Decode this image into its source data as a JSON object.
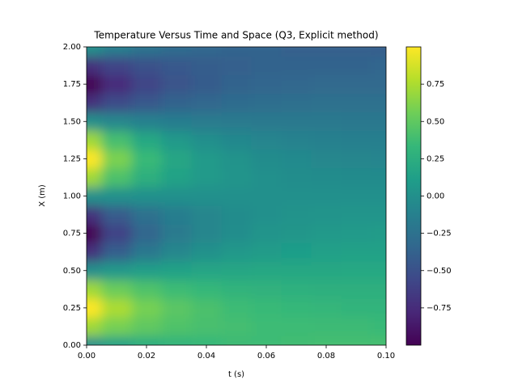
{
  "chart_data": {
    "type": "heatmap",
    "title": "Temperature Versus Time and Space (Q3, Explicit method)",
    "xlabel": "t (s)",
    "ylabel": "X (m)",
    "colormap": "viridis",
    "x": [
      0,
      0.01,
      0.02,
      0.03,
      0.04,
      0.05,
      0.06,
      0.07,
      0.08,
      0.09,
      0.1
    ],
    "y": [
      0,
      0.125,
      0.25,
      0.375,
      0.5,
      0.625,
      0.75,
      0.875,
      1,
      1.125,
      1.25,
      1.375,
      1.5,
      1.625,
      1.75,
      1.875,
      2
    ],
    "z": [
      [
        0,
        0.14,
        0.24,
        0.3,
        0.33,
        0.36,
        0.37,
        0.38,
        0.39,
        0.39,
        0.4
      ],
      [
        0.71,
        0.58,
        0.5,
        0.44,
        0.41,
        0.39,
        0.37,
        0.37,
        0.36,
        0.36,
        0.35
      ],
      [
        1.0,
        0.75,
        0.58,
        0.48,
        0.42,
        0.37,
        0.35,
        0.33,
        0.32,
        0.31,
        0.31
      ],
      [
        0.71,
        0.54,
        0.44,
        0.37,
        0.33,
        0.3,
        0.28,
        0.27,
        0.26,
        0.26,
        0.26
      ],
      [
        0,
        0.07,
        0.12,
        0.15,
        0.17,
        0.18,
        0.19,
        0.19,
        0.19,
        0.2,
        0.2
      ],
      [
        -0.71,
        -0.4,
        -0.2,
        -0.07,
        0.01,
        0.06,
        0.09,
        0.11,
        0.13,
        0.14,
        0.14
      ],
      [
        -1.0,
        -0.6,
        -0.35,
        -0.18,
        -0.08,
        -0.02,
        0.03,
        0.05,
        0.07,
        0.08,
        0.09
      ],
      [
        -0.71,
        -0.43,
        -0.26,
        -0.15,
        -0.08,
        -0.03,
        0,
        0.02,
        0.03,
        0.04,
        0.04
      ],
      [
        0,
        0,
        0,
        0,
        0,
        0,
        0,
        0,
        0,
        0,
        0
      ],
      [
        0.71,
        0.43,
        0.26,
        0.15,
        0.08,
        0.03,
        0,
        -0.02,
        -0.03,
        -0.04,
        -0.04
      ],
      [
        1.0,
        0.6,
        0.35,
        0.18,
        0.08,
        0.02,
        -0.03,
        -0.05,
        -0.07,
        -0.08,
        -0.09
      ],
      [
        0.71,
        0.4,
        0.2,
        0.07,
        -0.01,
        -0.06,
        -0.09,
        -0.11,
        -0.13,
        -0.14,
        -0.14
      ],
      [
        0,
        -0.07,
        -0.12,
        -0.15,
        -0.17,
        -0.18,
        -0.19,
        -0.19,
        -0.19,
        -0.2,
        -0.2
      ],
      [
        -0.71,
        -0.54,
        -0.44,
        -0.37,
        -0.33,
        -0.3,
        -0.28,
        -0.27,
        -0.26,
        -0.26,
        -0.26
      ],
      [
        -1.0,
        -0.75,
        -0.58,
        -0.48,
        -0.42,
        -0.37,
        -0.35,
        -0.33,
        -0.32,
        -0.31,
        -0.31
      ],
      [
        -0.71,
        -0.58,
        -0.5,
        -0.44,
        -0.41,
        -0.39,
        -0.37,
        -0.37,
        -0.36,
        -0.36,
        -0.35
      ],
      [
        0,
        -0.14,
        -0.24,
        -0.3,
        -0.33,
        -0.36,
        -0.37,
        -0.38,
        -0.39,
        -0.39,
        -0.4
      ]
    ],
    "xlim": [
      0,
      0.1
    ],
    "xticks": [
      {
        "value": 0,
        "label": "0.00"
      },
      {
        "value": 0.02,
        "label": "0.02"
      },
      {
        "value": 0.04,
        "label": "0.04"
      },
      {
        "value": 0.06,
        "label": "0.06"
      },
      {
        "value": 0.08,
        "label": "0.08"
      },
      {
        "value": 0.1,
        "label": "0.10"
      }
    ],
    "ylim": [
      0,
      2
    ],
    "yticks": [
      {
        "value": 0,
        "label": "0.00"
      },
      {
        "value": 0.25,
        "label": "0.25"
      },
      {
        "value": 0.5,
        "label": "0.50"
      },
      {
        "value": 0.75,
        "label": "0.75"
      },
      {
        "value": 1,
        "label": "1.00"
      },
      {
        "value": 1.25,
        "label": "1.25"
      },
      {
        "value": 1.5,
        "label": "1.50"
      },
      {
        "value": 1.75,
        "label": "1.75"
      },
      {
        "value": 2,
        "label": "2.00"
      }
    ],
    "clim": [
      -1,
      1
    ],
    "cticks": [
      {
        "value": -0.75,
        "label": "−0.75"
      },
      {
        "value": -0.5,
        "label": "−0.50"
      },
      {
        "value": -0.25,
        "label": "−0.25"
      },
      {
        "value": 0,
        "label": "0.00"
      },
      {
        "value": 0.25,
        "label": "0.25"
      },
      {
        "value": 0.5,
        "label": "0.50"
      },
      {
        "value": 0.75,
        "label": "0.75"
      }
    ]
  }
}
